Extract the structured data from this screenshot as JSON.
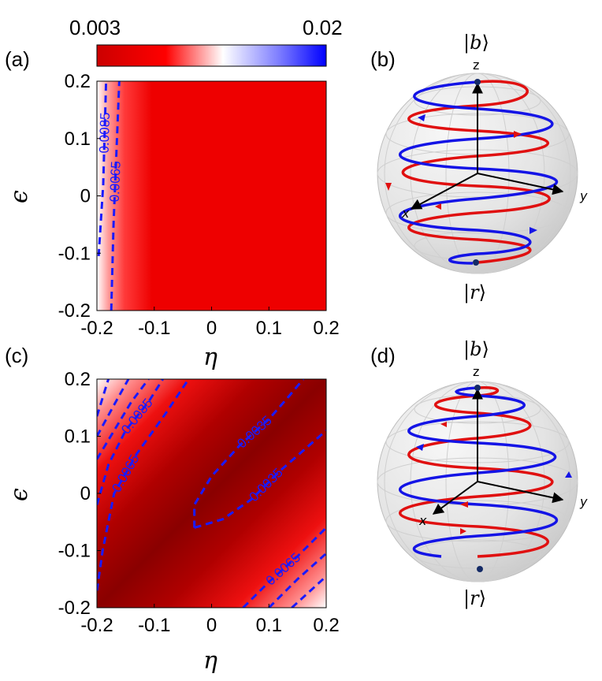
{
  "colorbar": {
    "min_label": "0.003",
    "max_label": "0.02",
    "colors": [
      "#ff0000",
      "#ffffff",
      "#0000ff"
    ]
  },
  "chart_data": [
    {
      "type": "heatmap",
      "panel": "(a)",
      "xlabel": "η",
      "ylabel": "ϵ",
      "xlim": [
        -0.2,
        0.2
      ],
      "ylim": [
        -0.2,
        0.2
      ],
      "xticks": [
        "-0.2",
        "-0.1",
        "0",
        "0.1",
        "0.2"
      ],
      "yticks": [
        "0.2",
        "0.1",
        "0",
        "-0.1",
        "-0.2"
      ],
      "colorbar_range": [
        0.003,
        0.02
      ],
      "contours": [
        {
          "level": 0.0085,
          "label": "0.0085",
          "points": [
            [
              -0.197,
              -0.105
            ],
            [
              -0.189,
              0.02
            ],
            [
              -0.184,
              0.2
            ]
          ]
        },
        {
          "level": 0.0065,
          "label": "0.0065",
          "points": [
            [
              -0.175,
              -0.2
            ],
            [
              -0.171,
              -0.05
            ],
            [
              -0.165,
              0.1
            ],
            [
              -0.161,
              0.2
            ]
          ]
        }
      ]
    },
    {
      "type": "heatmap",
      "panel": "(c)",
      "xlabel": "η",
      "ylabel": "ϵ",
      "xlim": [
        -0.2,
        0.2
      ],
      "ylim": [
        -0.2,
        0.2
      ],
      "xticks": [
        "-0.2",
        "-0.1",
        "0",
        "0.1",
        "0.2"
      ],
      "yticks": [
        "0.2",
        "0.1",
        "0",
        "-0.1",
        "-0.2"
      ],
      "colorbar_range": [
        0.003,
        0.02
      ],
      "contours": [
        {
          "level": 0.0035,
          "label": "0.0035",
          "points": [
            [
              -0.03,
              -0.06
            ],
            [
              -0.03,
              -0.02
            ],
            [
              0.0,
              0.03
            ],
            [
              0.05,
              0.085
            ],
            [
              0.1,
              0.13
            ],
            [
              0.135,
              0.17
            ],
            [
              0.16,
              0.2
            ]
          ]
        },
        {
          "level": 0.0035,
          "label": "0.0035",
          "points": [
            [
              -0.03,
              -0.06
            ],
            [
              0.02,
              -0.045
            ],
            [
              0.07,
              -0.01
            ],
            [
              0.12,
              0.04
            ],
            [
              0.2,
              0.11
            ]
          ]
        },
        {
          "level": 0.0065,
          "label": "0.0065",
          "points": [
            [
              -0.2,
              -0.17
            ],
            [
              -0.19,
              -0.1
            ],
            [
              -0.17,
              0.0
            ],
            [
              -0.13,
              0.07
            ],
            [
              -0.08,
              0.14
            ],
            [
              -0.04,
              0.2
            ]
          ]
        },
        {
          "level": 0.0085,
          "label": "0.0085",
          "points": [
            [
              -0.2,
              -0.02
            ],
            [
              -0.18,
              0.05
            ],
            [
              -0.15,
              0.11
            ],
            [
              -0.11,
              0.16
            ],
            [
              -0.085,
              0.2
            ]
          ]
        },
        {
          "level": 0.0105,
          "label": "",
          "points": [
            [
              -0.2,
              0.06
            ],
            [
              -0.17,
              0.11
            ],
            [
              -0.14,
              0.16
            ],
            [
              -0.11,
              0.2
            ]
          ]
        },
        {
          "level": 0.0125,
          "label": "",
          "points": [
            [
              -0.2,
              0.1
            ],
            [
              -0.17,
              0.155
            ],
            [
              -0.145,
              0.2
            ]
          ]
        },
        {
          "level": 0.0145,
          "label": "",
          "points": [
            [
              -0.2,
              0.135
            ],
            [
              -0.18,
              0.2
            ]
          ]
        },
        {
          "level": 0.0065,
          "label": "0.0065",
          "points": [
            [
              0.055,
              -0.2
            ],
            [
              0.1,
              -0.155
            ],
            [
              0.15,
              -0.11
            ],
            [
              0.2,
              -0.06
            ]
          ]
        },
        {
          "level": 0.0085,
          "label": "",
          "points": [
            [
              0.1,
              -0.2
            ],
            [
              0.15,
              -0.15
            ],
            [
              0.2,
              -0.105
            ]
          ]
        },
        {
          "level": 0.0105,
          "label": "",
          "points": [
            [
              0.14,
              -0.2
            ],
            [
              0.2,
              -0.145
            ]
          ]
        }
      ]
    }
  ],
  "bloch_spheres": [
    {
      "panel": "(b)",
      "top_state": {
        "open": "|",
        "letter": "b",
        "close": "⟩"
      },
      "bottom_state": {
        "open": "|",
        "letter": "r",
        "close": "⟩"
      },
      "axis_labels": {
        "z": "z",
        "x": "x",
        "y": "y"
      }
    },
    {
      "panel": "(d)",
      "top_state": {
        "open": "|",
        "letter": "b",
        "close": "⟩"
      },
      "bottom_state": {
        "open": "|",
        "letter": "r",
        "close": "⟩"
      },
      "axis_labels": {
        "z": "z",
        "x": "x",
        "y": "y"
      }
    }
  ],
  "colors": {
    "trajectory_red": "#e01010",
    "trajectory_blue": "#1414e6",
    "contour": "#1a1aff",
    "heatmap_base": "#ee0000",
    "heatmap_dark": "#8a0000"
  }
}
